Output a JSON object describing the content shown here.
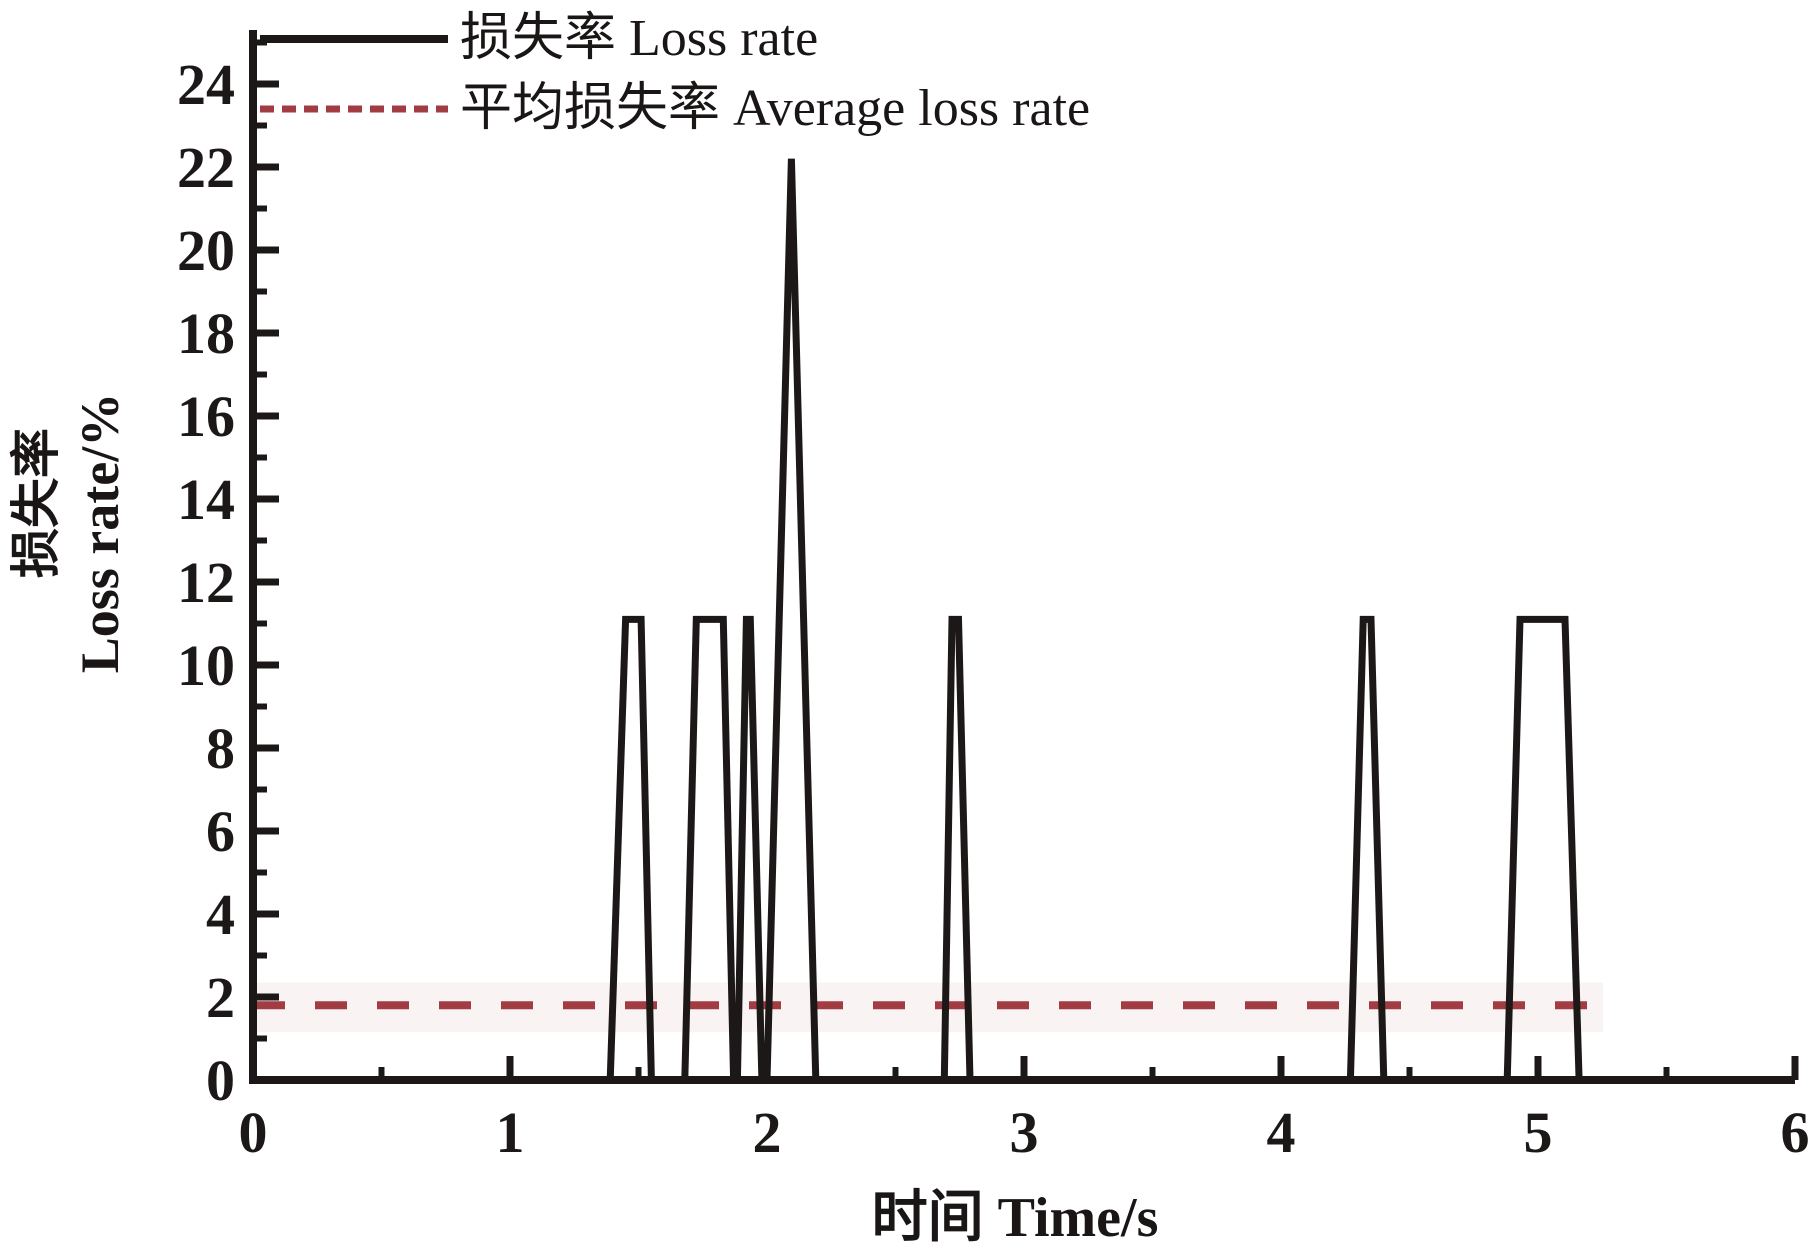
{
  "chart_data": {
    "type": "line",
    "title": "",
    "xlabel": "时间 Time/s",
    "ylabel_cn": "损失率",
    "ylabel_en": "Loss rate/%",
    "xlim": [
      0,
      6
    ],
    "ylim": [
      0,
      24
    ],
    "grid": false,
    "legend_position": "top-left-inside",
    "x_major_ticks": [
      0,
      1,
      2,
      3,
      4,
      5,
      6
    ],
    "x_minor_ticks": [
      0.5,
      1.5,
      2.5,
      3.5,
      4.5,
      5.5
    ],
    "y_major_ticks": [
      0,
      2,
      4,
      6,
      8,
      10,
      12,
      14,
      16,
      18,
      20,
      22,
      24
    ],
    "y_minor_ticks": [
      1,
      3,
      5,
      7,
      9,
      11,
      13,
      15,
      17,
      19,
      21,
      23,
      25
    ],
    "colors": {
      "axis": "#1c1818",
      "loss_line": "#1c1818",
      "average_line": "#a13c43"
    },
    "legend": [
      {
        "label": "损失率 Loss rate",
        "style": "solid",
        "color": "#1c1818"
      },
      {
        "label": "平均损失率 Average loss rate",
        "style": "dashed",
        "color": "#a13c43"
      }
    ],
    "series": [
      {
        "name": "损失率 Loss rate",
        "style": "solid",
        "points": [
          [
            0,
            0
          ],
          [
            1.39,
            0
          ],
          [
            1.45,
            11.1
          ],
          [
            1.51,
            11.1
          ],
          [
            1.55,
            0
          ],
          [
            1.68,
            0
          ],
          [
            1.725,
            11.1
          ],
          [
            1.83,
            11.1
          ],
          [
            1.87,
            0
          ],
          [
            1.885,
            0
          ],
          [
            1.92,
            11.1
          ],
          [
            1.935,
            11.1
          ],
          [
            1.98,
            0
          ],
          [
            2.0,
            0
          ],
          [
            2.095,
            22.2
          ],
          [
            2.19,
            0
          ],
          [
            2.69,
            0
          ],
          [
            2.72,
            11.1
          ],
          [
            2.745,
            11.1
          ],
          [
            2.79,
            0
          ],
          [
            4.27,
            0
          ],
          [
            4.32,
            11.1
          ],
          [
            4.35,
            11.1
          ],
          [
            4.4,
            0
          ],
          [
            4.88,
            0
          ],
          [
            4.93,
            11.1
          ],
          [
            5.105,
            11.1
          ],
          [
            5.16,
            0
          ],
          [
            5.22,
            0
          ]
        ]
      },
      {
        "name": "平均损失率 Average loss rate",
        "style": "dashed",
        "value": 1.8,
        "points": [
          [
            0,
            1.8
          ],
          [
            5.22,
            1.8
          ]
        ]
      }
    ]
  }
}
